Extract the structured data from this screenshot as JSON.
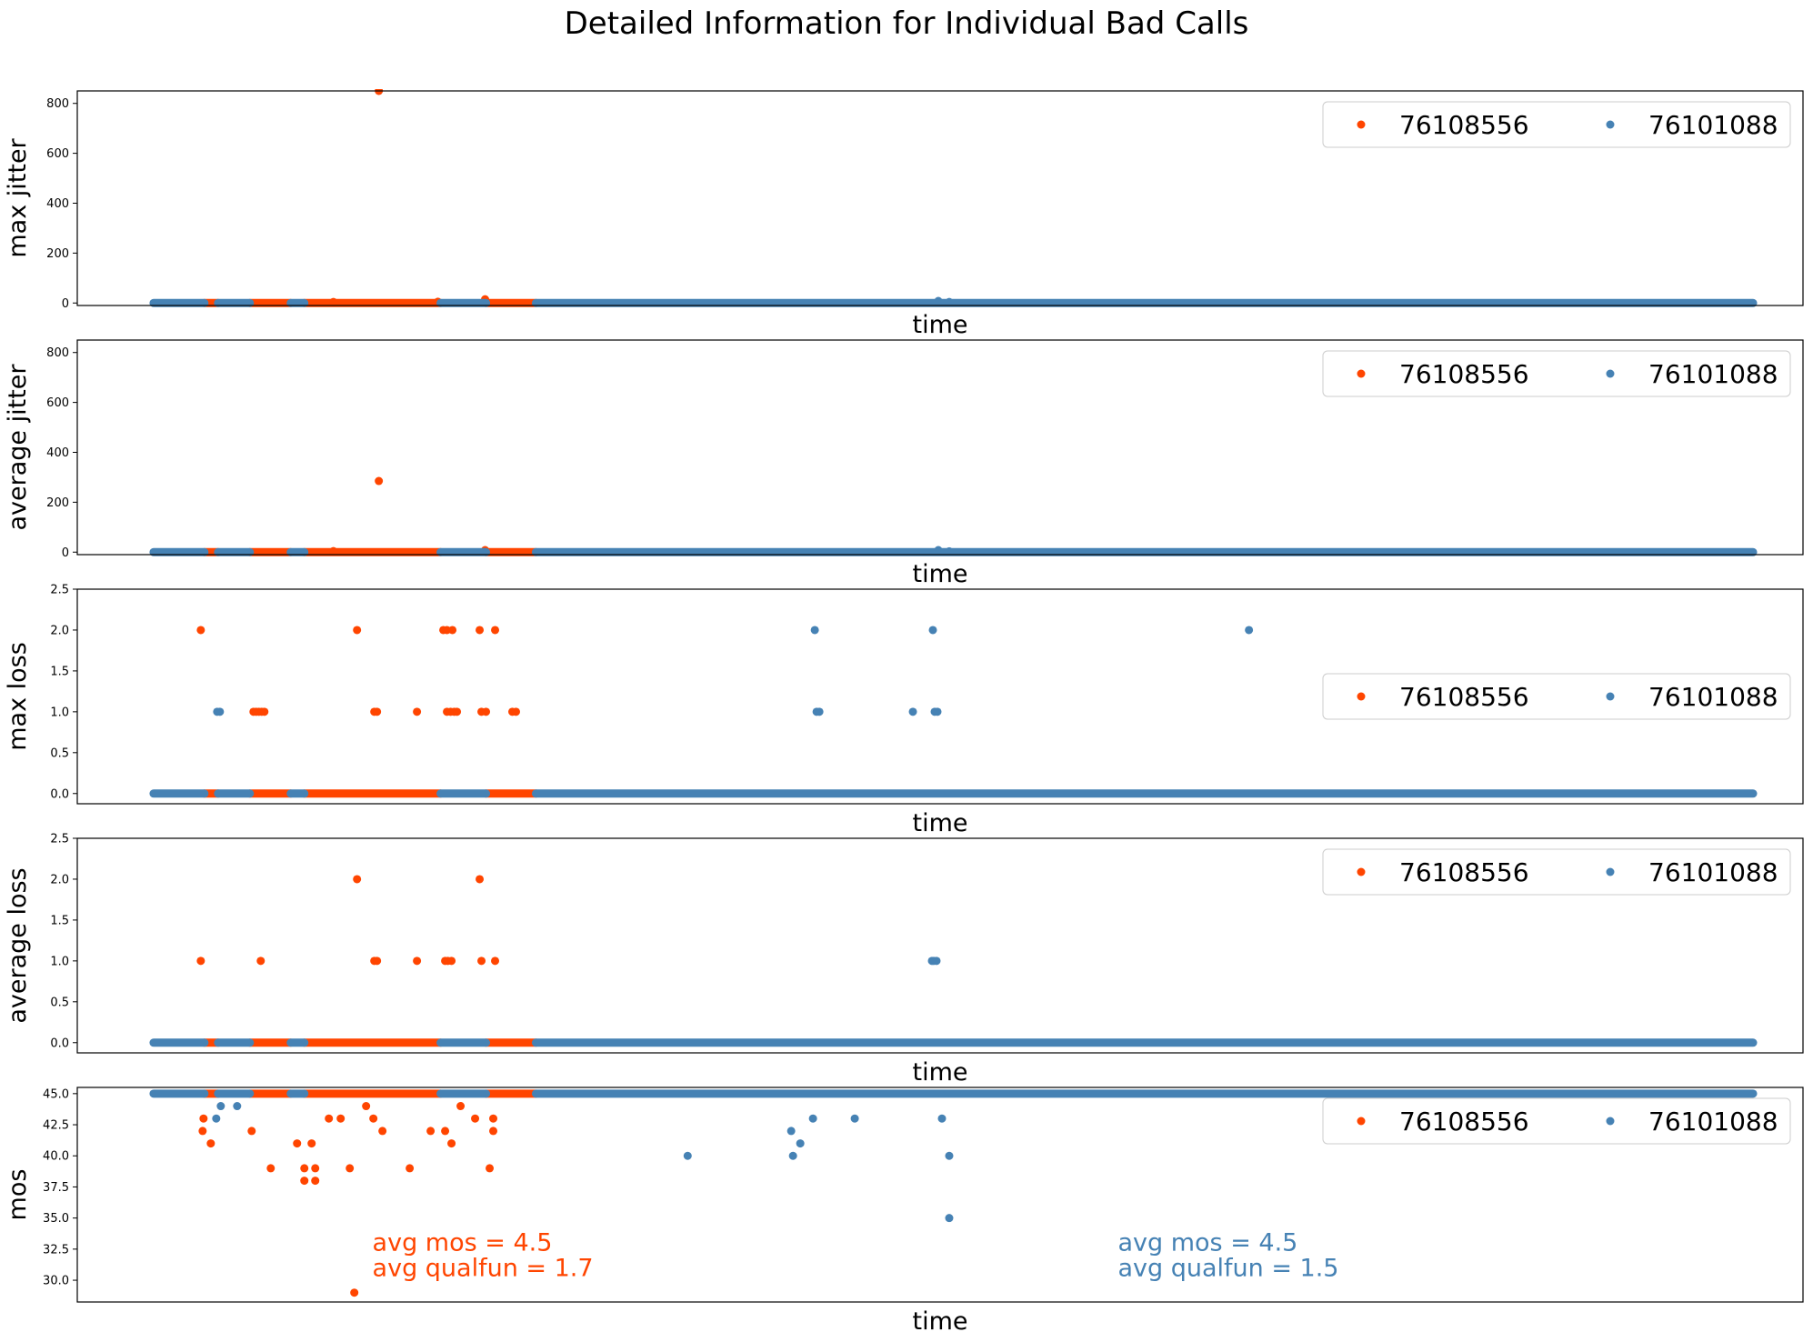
{
  "title": "Detailed Information for Individual Bad Calls",
  "colors": {
    "series_a": "#ff4500",
    "series_b": "#4682b4"
  },
  "legend": [
    "76108556",
    "76101088"
  ],
  "chart_data": [
    {
      "type": "scatter",
      "ylabel": "max jitter",
      "xlabel": "time",
      "ylim": [
        -10,
        850
      ],
      "yticks": [
        0,
        200,
        400,
        600,
        800
      ],
      "legend_position": "upper right",
      "series": [
        {
          "name": "76108556",
          "color": "#ff4500",
          "baseline_runs": [
            [
              140,
              155
            ],
            [
              190,
              235
            ],
            [
              250,
              400
            ],
            [
              450,
              505
            ]
          ],
          "baseline_y": 0,
          "points": [
            [
              332,
              850
            ],
            [
              449,
              15
            ],
            [
              282,
              4
            ],
            [
              397,
              5
            ]
          ]
        },
        {
          "name": "76101088",
          "color": "#4682b4",
          "baseline_runs": [
            [
              84,
              140
            ],
            [
              155,
              190
            ],
            [
              235,
              250
            ],
            [
              400,
              450
            ],
            [
              505,
              1845
            ]
          ],
          "baseline_y": 0,
          "points": [
            [
              948,
              8
            ],
            [
              960,
              4
            ]
          ]
        }
      ]
    },
    {
      "type": "scatter",
      "ylabel": "average jitter",
      "xlabel": "time",
      "ylim": [
        -10,
        850
      ],
      "yticks": [
        0,
        200,
        400,
        600,
        800
      ],
      "legend_position": "upper right",
      "series": [
        {
          "name": "76108556",
          "color": "#ff4500",
          "baseline_runs": [
            [
              140,
              155
            ],
            [
              190,
              235
            ],
            [
              250,
              400
            ],
            [
              450,
              505
            ]
          ],
          "baseline_y": 0,
          "points": [
            [
              332,
              285
            ],
            [
              449,
              8
            ],
            [
              282,
              4
            ]
          ]
        },
        {
          "name": "76101088",
          "color": "#4682b4",
          "baseline_runs": [
            [
              84,
              140
            ],
            [
              155,
              190
            ],
            [
              235,
              250
            ],
            [
              400,
              450
            ],
            [
              505,
              1845
            ]
          ],
          "baseline_y": 0,
          "points": [
            [
              948,
              8
            ],
            [
              960,
              3
            ]
          ]
        }
      ]
    },
    {
      "type": "scatter",
      "ylabel": "max loss",
      "xlabel": "time",
      "ylim": [
        -0.125,
        2.5
      ],
      "yticks": [
        0.0,
        0.5,
        1.0,
        1.5,
        2.0,
        2.5
      ],
      "legend_position": "center right",
      "series": [
        {
          "name": "76108556",
          "color": "#ff4500",
          "baseline_runs": [
            [
              140,
              155
            ],
            [
              190,
              235
            ],
            [
              250,
              400
            ],
            [
              450,
              505
            ]
          ],
          "baseline_y": 0,
          "points": [
            [
              136,
              2
            ],
            [
              308,
              2
            ],
            [
              403,
              2
            ],
            [
              407,
              2
            ],
            [
              413,
              2
            ],
            [
              443,
              2
            ],
            [
              460,
              2
            ],
            [
              194,
              1
            ],
            [
              197,
              1
            ],
            [
              200,
              1
            ],
            [
              203,
              1
            ],
            [
              206,
              1
            ],
            [
              327,
              1
            ],
            [
              330,
              1
            ],
            [
              374,
              1
            ],
            [
              407,
              1
            ],
            [
              411,
              1
            ],
            [
              415,
              1
            ],
            [
              418,
              1
            ],
            [
              445,
              1
            ],
            [
              450,
              1
            ],
            [
              479,
              1
            ],
            [
              483,
              1
            ]
          ]
        },
        {
          "name": "76101088",
          "color": "#4682b4",
          "baseline_runs": [
            [
              84,
              140
            ],
            [
              155,
              190
            ],
            [
              235,
              250
            ],
            [
              400,
              450
            ],
            [
              505,
              1845
            ]
          ],
          "baseline_y": 0,
          "points": [
            [
              812,
              2
            ],
            [
              942,
              2
            ],
            [
              1290,
              2
            ],
            [
              154,
              1
            ],
            [
              157,
              1
            ],
            [
              814,
              1
            ],
            [
              817,
              1
            ],
            [
              920,
              1
            ],
            [
              944,
              1
            ],
            [
              947,
              1
            ]
          ]
        }
      ]
    },
    {
      "type": "scatter",
      "ylabel": "average loss",
      "xlabel": "time",
      "ylim": [
        -0.125,
        2.5
      ],
      "yticks": [
        0.0,
        0.5,
        1.0,
        1.5,
        2.0,
        2.5
      ],
      "legend_position": "upper right",
      "series": [
        {
          "name": "76108556",
          "color": "#ff4500",
          "baseline_runs": [
            [
              140,
              155
            ],
            [
              190,
              235
            ],
            [
              250,
              400
            ],
            [
              450,
              505
            ]
          ],
          "baseline_y": 0,
          "points": [
            [
              308,
              2
            ],
            [
              443,
              2
            ],
            [
              136,
              1
            ],
            [
              202,
              1
            ],
            [
              327,
              1
            ],
            [
              330,
              1
            ],
            [
              374,
              1
            ],
            [
              405,
              1
            ],
            [
              408,
              1
            ],
            [
              412,
              1
            ],
            [
              445,
              1
            ],
            [
              460,
              1
            ]
          ]
        },
        {
          "name": "76101088",
          "color": "#4682b4",
          "baseline_runs": [
            [
              84,
              140
            ],
            [
              155,
              190
            ],
            [
              235,
              250
            ],
            [
              400,
              450
            ],
            [
              505,
              1845
            ]
          ],
          "baseline_y": 0,
          "points": [
            [
              941,
              1
            ],
            [
              943,
              1
            ],
            [
              946,
              1
            ]
          ]
        }
      ]
    },
    {
      "type": "scatter",
      "ylabel": "mos",
      "xlabel": "time",
      "ylim": [
        28.25,
        45.5
      ],
      "yticks": [
        30.0,
        32.5,
        35.0,
        37.5,
        40.0,
        42.5,
        45.0
      ],
      "legend_position": "upper right",
      "annotations": [
        {
          "color": "#ff4500",
          "lines": [
            "avg mos = 4.5",
            "avg qualfun = 1.7"
          ]
        },
        {
          "color": "#4682b4",
          "lines": [
            "avg mos = 4.5",
            "avg qualfun = 1.5"
          ]
        }
      ],
      "series": [
        {
          "name": "76108556",
          "color": "#ff4500",
          "baseline_runs": [
            [
              140,
              155
            ],
            [
              190,
              235
            ],
            [
              250,
              400
            ],
            [
              450,
              505
            ]
          ],
          "baseline_y": 45,
          "points": [
            [
              139,
              43
            ],
            [
              138,
              42
            ],
            [
              147,
              41
            ],
            [
              192,
              42
            ],
            [
              213,
              39
            ],
            [
              242,
              41
            ],
            [
              250,
              39
            ],
            [
              250,
              38
            ],
            [
              258,
              41
            ],
            [
              262,
              39
            ],
            [
              262,
              38
            ],
            [
              277,
              43
            ],
            [
              290,
              43
            ],
            [
              300,
              39
            ],
            [
              305,
              29
            ],
            [
              318,
              44
            ],
            [
              326,
              43
            ],
            [
              336,
              42
            ],
            [
              366,
              39
            ],
            [
              389,
              42
            ],
            [
              405,
              42
            ],
            [
              412,
              41
            ],
            [
              422,
              44
            ],
            [
              438,
              43
            ],
            [
              454,
              39
            ],
            [
              458,
              42
            ],
            [
              458,
              43
            ]
          ]
        },
        {
          "name": "76101088",
          "color": "#4682b4",
          "baseline_runs": [
            [
              84,
              140
            ],
            [
              155,
              190
            ],
            [
              235,
              250
            ],
            [
              400,
              450
            ],
            [
              505,
              1845
            ]
          ],
          "baseline_y": 45,
          "points": [
            [
              153,
              43
            ],
            [
              158,
              44
            ],
            [
              176,
              44
            ],
            [
              672,
              40
            ],
            [
              786,
              42
            ],
            [
              788,
              40
            ],
            [
              796,
              41
            ],
            [
              810,
              43
            ],
            [
              856,
              43
            ],
            [
              952,
              43
            ],
            [
              960,
              40
            ],
            [
              960,
              35
            ]
          ]
        }
      ]
    }
  ]
}
